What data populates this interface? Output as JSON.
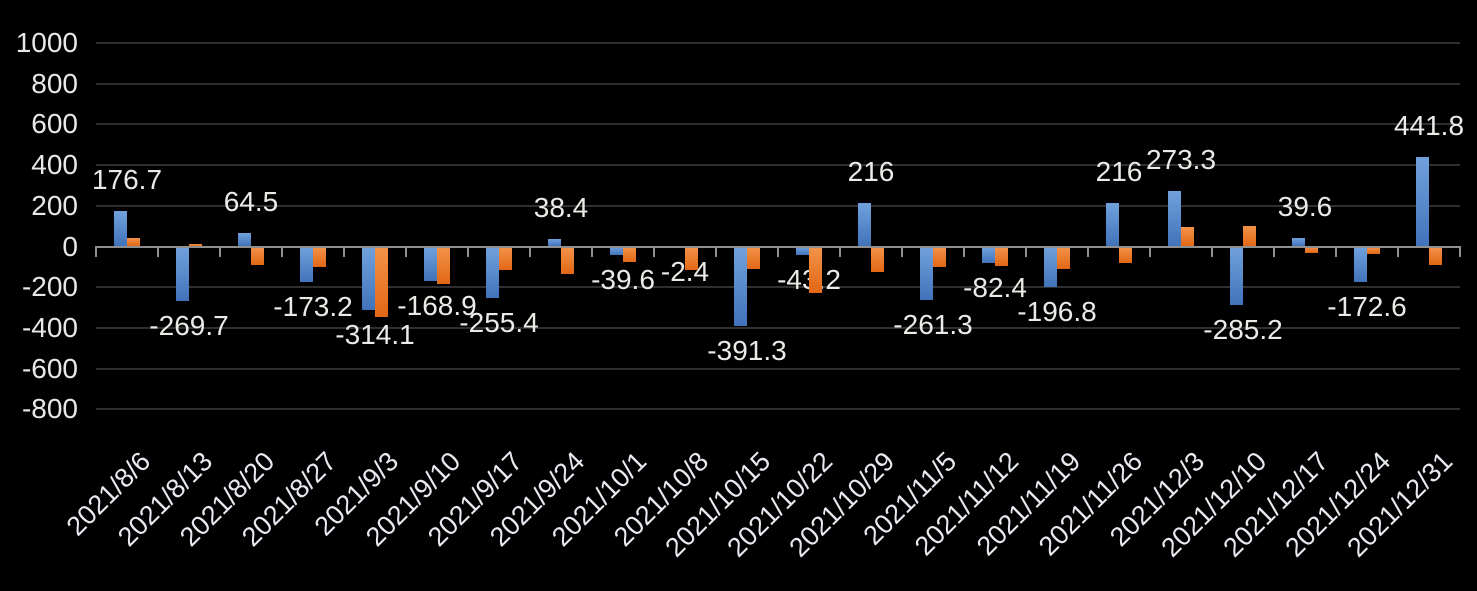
{
  "chart_data": {
    "type": "bar",
    "title": "",
    "legend": "none",
    "grid": true,
    "categories": [
      "2021/8/6",
      "2021/8/13",
      "2021/8/20",
      "2021/8/27",
      "2021/9/3",
      "2021/9/10",
      "2021/9/17",
      "2021/9/24",
      "2021/10/1",
      "2021/10/8",
      "2021/10/15",
      "2021/10/22",
      "2021/10/29",
      "2021/11/5",
      "2021/11/12",
      "2021/11/19",
      "2021/11/26",
      "2021/12/3",
      "2021/12/10",
      "2021/12/17",
      "2021/12/24",
      "2021/12/31"
    ],
    "series": [
      {
        "name": "series-blue",
        "color": "#4f81c7",
        "values": [
          176.7,
          -269.7,
          64.5,
          -173.2,
          -314.1,
          -168.9,
          -255.4,
          38.4,
          -39.6,
          -2.4,
          -391.3,
          -43.2,
          216,
          -261.3,
          -82.4,
          -196.8,
          216,
          273.3,
          -285.2,
          39.6,
          -172.6,
          441.8
        ],
        "data_labels": [
          "176.7",
          "-269.7",
          "64.5",
          "-173.2",
          "-314.1",
          "-168.9",
          "-255.4",
          "38.4",
          "-39.6",
          "-2.4",
          "-391.3",
          "-43.2",
          "216",
          "-261.3",
          "-82.4",
          "-196.8",
          "216",
          "273.3",
          "-285.2",
          "39.6",
          "-172.6",
          "441.8"
        ]
      },
      {
        "name": "series-orange",
        "color": "#ed7d31",
        "values": [
          44,
          10,
          -92,
          -100,
          -348,
          -186,
          -115,
          -137,
          -77,
          -115,
          -112,
          -230,
          -124,
          -100,
          -98,
          -111,
          -82,
          98,
          103,
          -33,
          -38,
          -91
        ]
      }
    ],
    "yaxis": {
      "min": -800,
      "max": 1000,
      "step": 200,
      "tick_labels": [
        "1000",
        "800",
        "600",
        "400",
        "200",
        "0",
        "-200",
        "-400",
        "-600",
        "-800"
      ]
    },
    "xaxis": {
      "label_rotation_deg": -45
    },
    "colors": {
      "background": "#000000",
      "gridline": "#2f2f2f",
      "axis_line": "#8f8f8f",
      "text": "#e8e8e8"
    }
  }
}
